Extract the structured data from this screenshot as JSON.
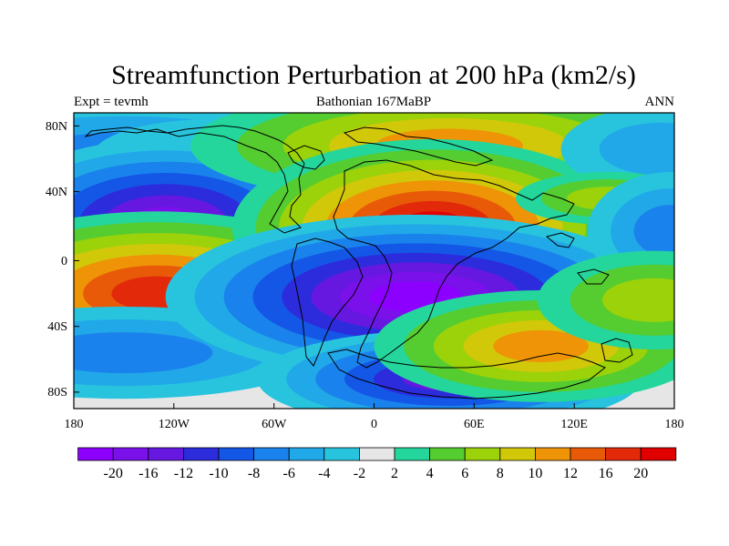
{
  "chart_data": {
    "type": "heatmap",
    "subtype": "filled-contour-map",
    "title": "Streamfunction Perturbation at 200 hPa (km2/s)",
    "left_subtitle": "Expt = tevmh",
    "center_subtitle": "Bathonian 167MaBP",
    "right_subtitle": "ANN",
    "x_axis": {
      "range": [
        -180,
        180
      ],
      "ticks": [
        -180,
        -120,
        -60,
        0,
        60,
        120,
        180
      ],
      "tick_labels": [
        "180",
        "120W",
        "60W",
        "0",
        "60E",
        "120E",
        "180"
      ]
    },
    "y_axis": {
      "range": [
        -90,
        90
      ],
      "ticks": [
        80,
        40,
        0,
        -40,
        -80
      ],
      "tick_labels": [
        "80N",
        "40N",
        "0",
        "40S",
        "80S"
      ]
    },
    "colorbar": {
      "levels": [
        -20,
        -16,
        -12,
        -10,
        -8,
        -6,
        -4,
        -2,
        2,
        4,
        6,
        8,
        10,
        12,
        16,
        20
      ],
      "labels": [
        "-20",
        "-16",
        "-12",
        "-10",
        "-8",
        "-6",
        "-4",
        "-2",
        "2",
        "4",
        "6",
        "8",
        "10",
        "12",
        "16",
        "20"
      ],
      "colors": [
        "#8c00ff",
        "#7a10ea",
        "#6618e0",
        "#2c2cdc",
        "#1456e6",
        "#1a82ec",
        "#21a8e8",
        "#28c4de",
        "#e6e6e6",
        "#24d69c",
        "#55cc30",
        "#9bd20a",
        "#d2c80a",
        "#ee9406",
        "#e85a08",
        "#e22a0a",
        "#e00000"
      ]
    },
    "features": [
      {
        "name": "tropical-low-pacific",
        "lon": -125,
        "lat": 22,
        "peak": -20
      },
      {
        "name": "tropical-low-south-pacific",
        "lon": -130,
        "lat": -20,
        "peak": 18
      },
      {
        "name": "tropical-high-africa",
        "lon": 35,
        "lat": 20,
        "peak": 22
      },
      {
        "name": "tropical-low-south-africa",
        "lon": 25,
        "lat": -22,
        "peak": -22
      },
      {
        "name": "polar-low-south",
        "lon": 45,
        "lat": -72,
        "peak": -14
      },
      {
        "name": "high-lat-north-high",
        "lon": 50,
        "lat": 70,
        "peak": 10
      }
    ]
  }
}
